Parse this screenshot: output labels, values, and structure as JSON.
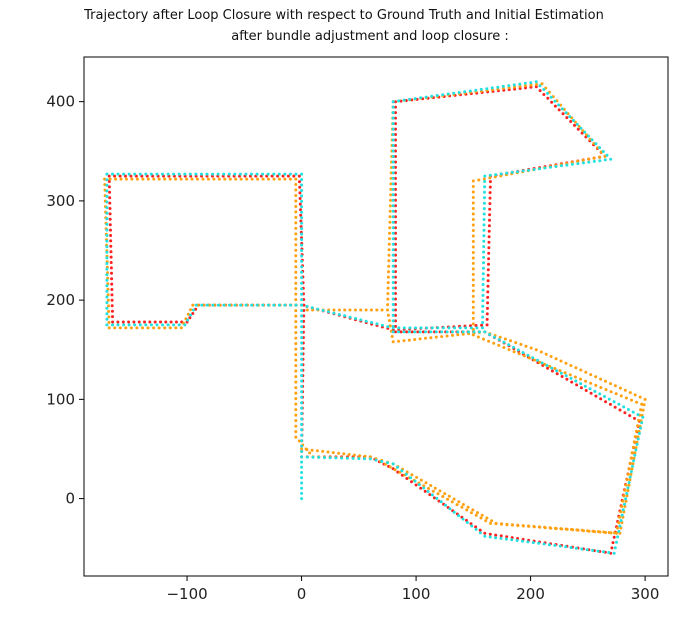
{
  "chart_data": {
    "type": "scatter",
    "title": "Trajectory after Loop Closure with respect to Ground Truth and Initial Estimation",
    "subtitle": "after bundle adjustment and loop closure :",
    "xlabel": "",
    "ylabel": "",
    "xlim": [
      -190,
      320
    ],
    "ylim": [
      -78,
      445
    ],
    "x_ticks": [
      -100,
      0,
      100,
      200,
      300
    ],
    "y_ticks": [
      0,
      100,
      200,
      300,
      400
    ],
    "x_tick_labels": [
      "−100",
      "0",
      "100",
      "200",
      "300"
    ],
    "y_tick_labels": [
      "0",
      "100",
      "200",
      "300",
      "400"
    ],
    "grid": false,
    "legend": "none",
    "series": [
      {
        "color": "#ff2020",
        "points": [
          [
            0,
            42
          ],
          [
            60,
            42
          ],
          [
            80,
            30
          ],
          [
            160,
            -35
          ],
          [
            270,
            -55
          ],
          [
            295,
            78
          ],
          [
            160,
            168
          ],
          [
            82,
            168
          ],
          [
            82,
            400
          ],
          [
            205,
            415
          ],
          [
            265,
            345
          ],
          [
            165,
            325
          ],
          [
            162,
            175
          ],
          [
            80,
            170
          ],
          [
            0,
            195
          ],
          [
            -90,
            195
          ],
          [
            -100,
            178
          ],
          [
            -165,
            178
          ],
          [
            -168,
            325
          ],
          [
            -2,
            325
          ],
          [
            2,
            195
          ],
          [
            0,
            42
          ]
        ]
      },
      {
        "color": "#ffa010",
        "points": [
          [
            0,
            50
          ],
          [
            60,
            42
          ],
          [
            80,
            35
          ],
          [
            170,
            -25
          ],
          [
            278,
            -35
          ],
          [
            300,
            100
          ],
          [
            205,
            150
          ],
          [
            160,
            168
          ],
          [
            80,
            158
          ],
          [
            75,
            190
          ],
          [
            5,
            190
          ],
          [
            0,
            195
          ],
          [
            -95,
            195
          ],
          [
            -105,
            172
          ],
          [
            -168,
            172
          ],
          [
            -172,
            322
          ],
          [
            -5,
            322
          ],
          [
            -5,
            195
          ],
          [
            -5,
            62
          ],
          [
            10,
            42
          ],
          [
            65,
            40
          ],
          [
            165,
            -25
          ],
          [
            275,
            -35
          ],
          [
            297,
            95
          ],
          [
            150,
            165
          ],
          [
            150,
            320
          ],
          [
            265,
            345
          ],
          [
            210,
            418
          ],
          [
            80,
            400
          ],
          [
            75,
            190
          ]
        ]
      },
      {
        "color": "#20e0e0",
        "points": [
          [
            0,
            0
          ],
          [
            0,
            42
          ],
          [
            60,
            40
          ],
          [
            80,
            35
          ],
          [
            160,
            -38
          ],
          [
            273,
            -55
          ],
          [
            298,
            82
          ],
          [
            160,
            168
          ],
          [
            80,
            168
          ],
          [
            80,
            400
          ],
          [
            205,
            420
          ],
          [
            270,
            342
          ],
          [
            160,
            325
          ],
          [
            158,
            172
          ],
          [
            80,
            172
          ],
          [
            0,
            195
          ],
          [
            -92,
            195
          ],
          [
            -102,
            175
          ],
          [
            -170,
            175
          ],
          [
            -170,
            327
          ],
          [
            0,
            327
          ],
          [
            0,
            195
          ],
          [
            0,
            42
          ]
        ]
      }
    ]
  }
}
